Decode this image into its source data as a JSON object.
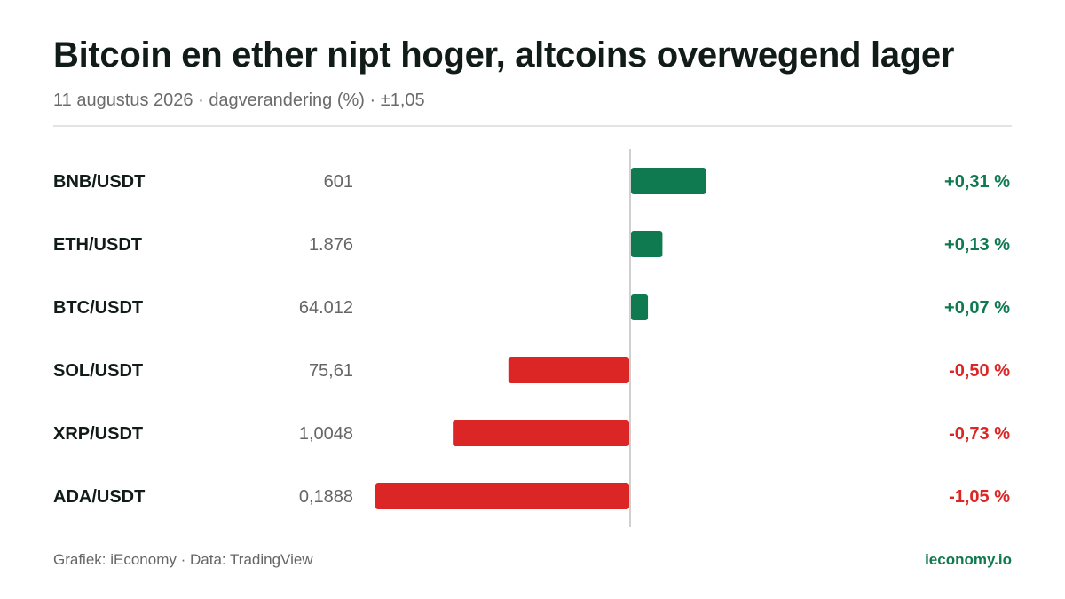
{
  "header": {
    "title": "Bitcoin en ether nipt hoger, altcoins overwegend lager",
    "subtitle": "11 augustus 2026 · dagverandering (%) · ±1,05"
  },
  "footer": {
    "source": "Grafiek: iEconomy · Data: TradingView",
    "brand": "ieconomy.io"
  },
  "colors": {
    "positive": "#0f7a4f",
    "negative": "#dc2626",
    "brand": "#0f7a4f",
    "zero_line": "#d0d0d0"
  },
  "chart_data": {
    "type": "bar",
    "orientation": "horizontal",
    "x_range": [
      -1.05,
      1.05
    ],
    "grid": false,
    "rows": [
      {
        "pair": "BNB/USDT",
        "price": "601",
        "value": 0.31,
        "label": "+0,31 %"
      },
      {
        "pair": "ETH/USDT",
        "price": "1.876",
        "value": 0.13,
        "label": "+0,13 %"
      },
      {
        "pair": "BTC/USDT",
        "price": "64.012",
        "value": 0.07,
        "label": "+0,07 %"
      },
      {
        "pair": "SOL/USDT",
        "price": "75,61",
        "value": -0.5,
        "label": "-0,50 %"
      },
      {
        "pair": "XRP/USDT",
        "price": "1,0048",
        "value": -0.73,
        "label": "-0,73 %"
      },
      {
        "pair": "ADA/USDT",
        "price": "0,1888",
        "value": -1.05,
        "label": "-1,05 %"
      }
    ]
  }
}
